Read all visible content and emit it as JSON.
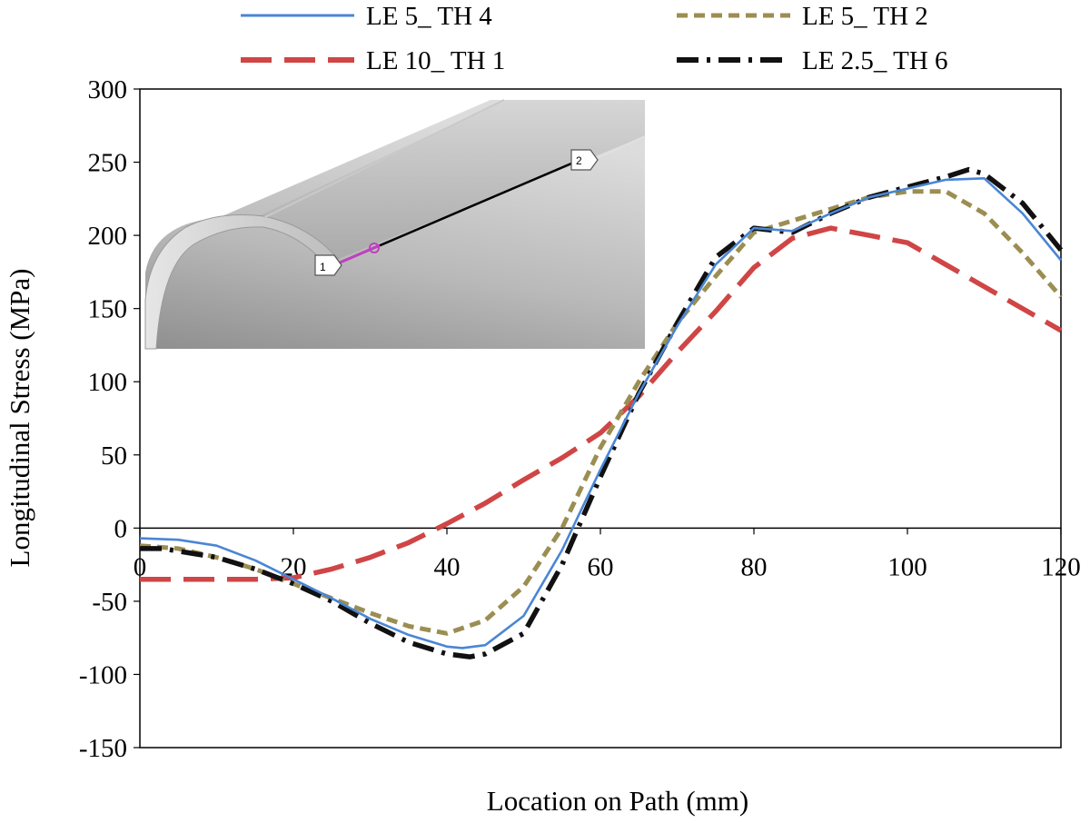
{
  "chart_data": {
    "type": "line",
    "title": "",
    "xlabel": "Location on Path (mm)",
    "ylabel": "Longitudinal Stress (MPa)",
    "xlim": [
      0,
      120
    ],
    "ylim": [
      -150,
      300
    ],
    "xticks": [
      0,
      20,
      40,
      60,
      80,
      100,
      120
    ],
    "yticks": [
      -150,
      -100,
      -50,
      0,
      50,
      100,
      150,
      200,
      250,
      300
    ],
    "grid": false,
    "legend_position": "top",
    "series": [
      {
        "name": "LE 5_ TH 4",
        "color": "#4a86d4",
        "style": "solid",
        "x": [
          0,
          5,
          10,
          15,
          20,
          25,
          30,
          35,
          40,
          42,
          45,
          50,
          55,
          60,
          65,
          70,
          75,
          80,
          85,
          90,
          95,
          100,
          105,
          110,
          115,
          120
        ],
        "y": [
          -7,
          -8,
          -12,
          -22,
          -35,
          -48,
          -62,
          -73,
          -81,
          -82,
          -80,
          -60,
          -15,
          40,
          92,
          138,
          180,
          205,
          203,
          215,
          226,
          232,
          238,
          239,
          215,
          183
        ]
      },
      {
        "name": "LE 5_ TH 2",
        "color": "#9b8e52",
        "style": "dashed",
        "x": [
          0,
          5,
          10,
          15,
          20,
          25,
          30,
          35,
          40,
          45,
          50,
          55,
          60,
          65,
          70,
          75,
          80,
          85,
          90,
          95,
          100,
          105,
          110,
          115,
          120
        ],
        "y": [
          -12,
          -14,
          -20,
          -28,
          -38,
          -48,
          -58,
          -67,
          -72,
          -63,
          -40,
          0,
          55,
          100,
          140,
          172,
          202,
          210,
          218,
          226,
          230,
          230,
          215,
          188,
          158
        ]
      },
      {
        "name": "LE 10_ TH 1",
        "color": "#d04545",
        "style": "longdash",
        "x": [
          0,
          5,
          10,
          15,
          20,
          25,
          30,
          35,
          40,
          45,
          50,
          55,
          60,
          65,
          70,
          75,
          80,
          85,
          90,
          95,
          100,
          105,
          110,
          115,
          120
        ],
        "y": [
          -35,
          -35,
          -35,
          -35,
          -34,
          -28,
          -20,
          -10,
          3,
          17,
          33,
          48,
          65,
          90,
          120,
          148,
          178,
          198,
          205,
          200,
          195,
          180,
          165,
          150,
          135
        ]
      },
      {
        "name": "LE 2.5_ TH 6",
        "color": "#111111",
        "style": "dashdot",
        "x": [
          0,
          3,
          10,
          15,
          20,
          25,
          30,
          35,
          40,
          43,
          45,
          50,
          55,
          60,
          65,
          70,
          75,
          80,
          85,
          90,
          95,
          100,
          105,
          108,
          110,
          115,
          120
        ],
        "y": [
          -14,
          -14,
          -20,
          -28,
          -38,
          -50,
          -65,
          -78,
          -86,
          -88,
          -86,
          -72,
          -25,
          35,
          92,
          140,
          185,
          205,
          202,
          215,
          226,
          233,
          240,
          245,
          242,
          222,
          190
        ]
      }
    ]
  },
  "inset": {
    "marker_1": "1",
    "marker_2": "2"
  }
}
